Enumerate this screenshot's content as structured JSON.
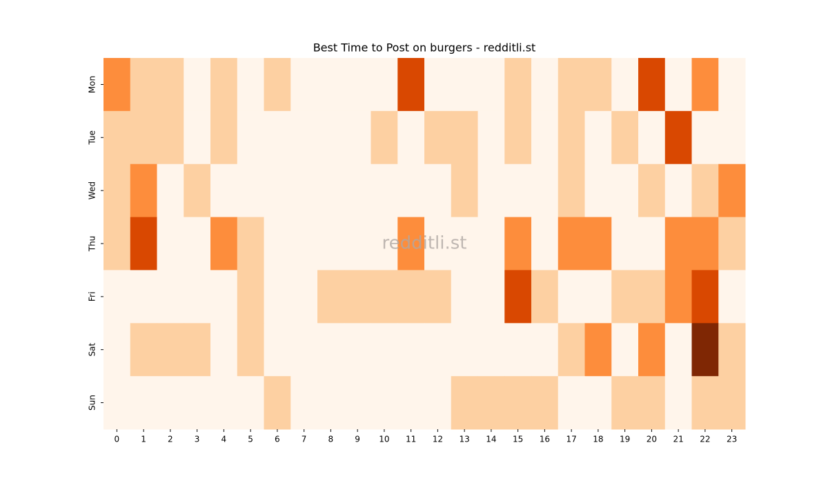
{
  "chart_data": {
    "type": "heatmap",
    "title": "Best Time to Post on burgers - redditli.st",
    "watermark": "redditli.st",
    "x": [
      0,
      1,
      2,
      3,
      4,
      5,
      6,
      7,
      8,
      9,
      10,
      11,
      12,
      13,
      14,
      15,
      16,
      17,
      18,
      19,
      20,
      21,
      22,
      23
    ],
    "y": [
      "Mon",
      "Tue",
      "Wed",
      "Thu",
      "Fri",
      "Sat",
      "Sun"
    ],
    "z": [
      [
        2,
        1,
        1,
        0,
        1,
        0,
        1,
        0,
        0,
        0,
        0,
        3,
        0,
        0,
        0,
        1,
        0,
        1,
        1,
        0,
        3,
        0,
        2,
        0
      ],
      [
        1,
        1,
        1,
        0,
        1,
        0,
        0,
        0,
        0,
        0,
        1,
        0,
        1,
        1,
        0,
        1,
        0,
        1,
        0,
        1,
        0,
        3,
        0,
        0
      ],
      [
        1,
        2,
        0,
        1,
        0,
        0,
        0,
        0,
        0,
        0,
        0,
        0,
        0,
        1,
        0,
        0,
        0,
        1,
        0,
        0,
        1,
        0,
        1,
        2
      ],
      [
        1,
        3,
        0,
        0,
        2,
        1,
        0,
        0,
        0,
        0,
        0,
        2,
        0,
        0,
        0,
        2,
        0,
        2,
        2,
        0,
        0,
        2,
        2,
        1
      ],
      [
        0,
        0,
        0,
        0,
        0,
        1,
        0,
        0,
        1,
        1,
        1,
        1,
        1,
        0,
        0,
        3,
        1,
        0,
        0,
        1,
        1,
        2,
        3,
        0
      ],
      [
        0,
        1,
        1,
        1,
        0,
        1,
        0,
        0,
        0,
        0,
        0,
        0,
        0,
        0,
        0,
        0,
        0,
        1,
        2,
        0,
        2,
        0,
        4,
        1
      ],
      [
        0,
        0,
        0,
        0,
        0,
        0,
        1,
        0,
        0,
        0,
        0,
        0,
        0,
        1,
        1,
        1,
        1,
        0,
        0,
        1,
        1,
        0,
        1,
        1
      ]
    ],
    "zlim": [
      0,
      4
    ],
    "colorscale": [
      "#fff5eb",
      "#fdd0a2",
      "#fd8d3c",
      "#d94801",
      "#7f2704"
    ]
  }
}
